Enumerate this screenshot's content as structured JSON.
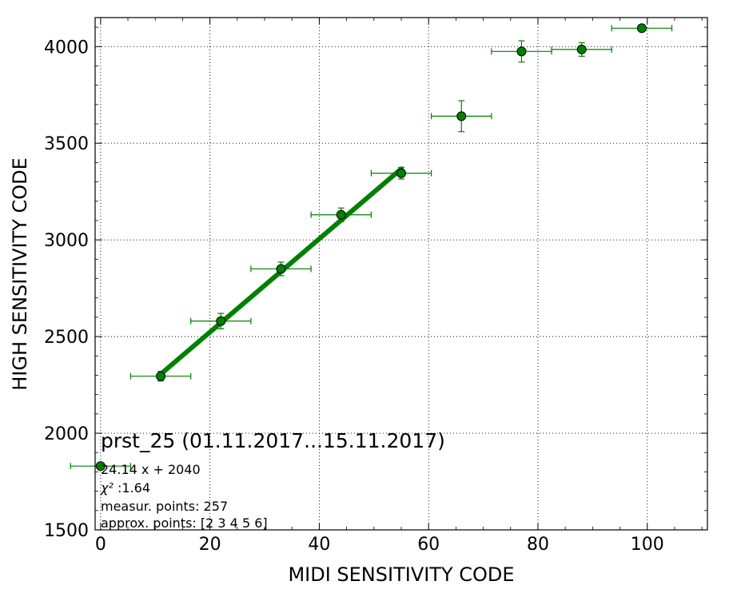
{
  "chart_data": {
    "type": "scatter",
    "xlabel": "MIDI SENSITIVITY CODE",
    "ylabel": "HIGH SENSITIVITY CODE",
    "xlim": [
      -1,
      111
    ],
    "ylim": [
      1500,
      4150
    ],
    "xticks": [
      0,
      20,
      40,
      60,
      80,
      100
    ],
    "xtick_labels": [
      "0",
      "20",
      "40",
      "60",
      "80",
      "100"
    ],
    "yticks": [
      1500,
      2000,
      2500,
      3000,
      3500,
      4000
    ],
    "ytick_labels": [
      "1500",
      "2000",
      "2500",
      "3000",
      "3500",
      "4000"
    ],
    "grid": true,
    "color": "#008000",
    "points": [
      {
        "x": 0,
        "y": 1830,
        "xerr": 5.5,
        "yerr": 0
      },
      {
        "x": 11,
        "y": 2295,
        "xerr": 5.5,
        "yerr": 25
      },
      {
        "x": 22,
        "y": 2580,
        "xerr": 5.5,
        "yerr": 40
      },
      {
        "x": 33,
        "y": 2850,
        "xerr": 5.5,
        "yerr": 35
      },
      {
        "x": 44,
        "y": 3130,
        "xerr": 5.5,
        "yerr": 35
      },
      {
        "x": 55,
        "y": 3345,
        "xerr": 5.5,
        "yerr": 30
      },
      {
        "x": 66,
        "y": 3640,
        "xerr": 5.5,
        "yerr": 80
      },
      {
        "x": 77,
        "y": 3975,
        "xerr": 5.5,
        "yerr": 55
      },
      {
        "x": 88,
        "y": 3985,
        "xerr": 5.5,
        "yerr": 35
      },
      {
        "x": 99,
        "y": 4095,
        "xerr": 5.5,
        "yerr": 0
      }
    ],
    "fit": {
      "slope": 24.14,
      "intercept": 2040,
      "x_start": 11,
      "x_end": 55
    },
    "annotation": {
      "title": "prst_25 (01.11.2017...15.11.2017)",
      "equation": "24.14 x + 2040",
      "chi2_symbol": "χ²",
      "chi2_value": ":1.64",
      "measur_points": "measur. points: 257",
      "approx_points": "approx. points: [2 3 4 5 6]"
    }
  }
}
